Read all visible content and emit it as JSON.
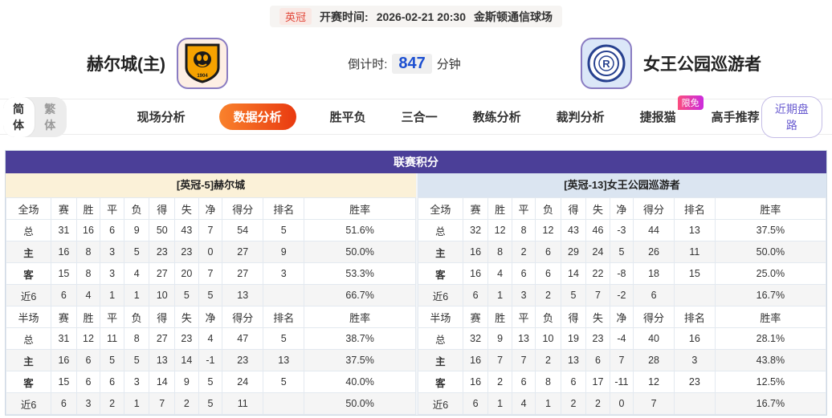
{
  "header": {
    "league_badge": "英冠",
    "kickoff_label": "开赛时间:",
    "kickoff_time": "2026-02-21 20:30",
    "venue": "金斯顿通信球场",
    "home_team": "赫尔城(主)",
    "away_team": "女王公园巡游者",
    "home_logo_year": "1904",
    "countdown_label": "倒计时:",
    "countdown_value": "847",
    "countdown_unit": "分钟"
  },
  "nav": {
    "lang": {
      "simplified": "简体",
      "traditional": "繁体"
    },
    "tabs": [
      {
        "label": "现场分析",
        "active": false
      },
      {
        "label": "数据分析",
        "active": true
      },
      {
        "label": "胜平负",
        "active": false
      },
      {
        "label": "三合一",
        "active": false
      },
      {
        "label": "教练分析",
        "active": false
      },
      {
        "label": "裁判分析",
        "active": false
      },
      {
        "label": "捷报猫",
        "active": false,
        "badge": "限免"
      },
      {
        "label": "高手推荐",
        "active": false
      }
    ],
    "recent_button": "近期盘路"
  },
  "colors": {
    "title_purple": "#4b3f98",
    "home_header_bg": "#fbf1d8",
    "away_header_bg": "#dbe5f1",
    "active_tab": "#e93a10",
    "home_row_label": "#d9342b",
    "away_row_label": "#2d52c8",
    "countdown_blue": "#1c4fd1"
  },
  "standings": {
    "title": "联赛积分",
    "sides": [
      {
        "team_header": "[英冠-5]赫尔城",
        "style": "cream",
        "sections": [
          {
            "columns": [
              "全场",
              "赛",
              "胜",
              "平",
              "负",
              "得",
              "失",
              "净",
              "得分",
              "排名",
              "胜率"
            ],
            "rows": [
              {
                "label": "总",
                "type": "total",
                "values": [
                  "31",
                  "16",
                  "6",
                  "9",
                  "50",
                  "43",
                  "7",
                  "54",
                  "5",
                  "51.6%"
                ]
              },
              {
                "label": "主",
                "type": "home",
                "values": [
                  "16",
                  "8",
                  "3",
                  "5",
                  "23",
                  "23",
                  "0",
                  "27",
                  "9",
                  "50.0%"
                ]
              },
              {
                "label": "客",
                "type": "away",
                "values": [
                  "15",
                  "8",
                  "3",
                  "4",
                  "27",
                  "20",
                  "7",
                  "27",
                  "3",
                  "53.3%"
                ]
              },
              {
                "label": "近6",
                "type": "recent",
                "values": [
                  "6",
                  "4",
                  "1",
                  "1",
                  "10",
                  "5",
                  "5",
                  "13",
                  "",
                  "66.7%"
                ]
              }
            ]
          },
          {
            "columns": [
              "半场",
              "赛",
              "胜",
              "平",
              "负",
              "得",
              "失",
              "净",
              "得分",
              "排名",
              "胜率"
            ],
            "rows": [
              {
                "label": "总",
                "type": "total",
                "values": [
                  "31",
                  "12",
                  "11",
                  "8",
                  "27",
                  "23",
                  "4",
                  "47",
                  "5",
                  "38.7%"
                ]
              },
              {
                "label": "主",
                "type": "home",
                "values": [
                  "16",
                  "6",
                  "5",
                  "5",
                  "13",
                  "14",
                  "-1",
                  "23",
                  "13",
                  "37.5%"
                ]
              },
              {
                "label": "客",
                "type": "away",
                "values": [
                  "15",
                  "6",
                  "6",
                  "3",
                  "14",
                  "9",
                  "5",
                  "24",
                  "5",
                  "40.0%"
                ]
              },
              {
                "label": "近6",
                "type": "recent",
                "values": [
                  "6",
                  "3",
                  "2",
                  "1",
                  "7",
                  "2",
                  "5",
                  "11",
                  "",
                  "50.0%"
                ]
              }
            ]
          }
        ]
      },
      {
        "team_header": "[英冠-13]女王公园巡游者",
        "style": "blue",
        "sections": [
          {
            "columns": [
              "全场",
              "赛",
              "胜",
              "平",
              "负",
              "得",
              "失",
              "净",
              "得分",
              "排名",
              "胜率"
            ],
            "rows": [
              {
                "label": "总",
                "type": "total",
                "values": [
                  "32",
                  "12",
                  "8",
                  "12",
                  "43",
                  "46",
                  "-3",
                  "44",
                  "13",
                  "37.5%"
                ]
              },
              {
                "label": "主",
                "type": "home",
                "values": [
                  "16",
                  "8",
                  "2",
                  "6",
                  "29",
                  "24",
                  "5",
                  "26",
                  "11",
                  "50.0%"
                ]
              },
              {
                "label": "客",
                "type": "away",
                "values": [
                  "16",
                  "4",
                  "6",
                  "6",
                  "14",
                  "22",
                  "-8",
                  "18",
                  "15",
                  "25.0%"
                ]
              },
              {
                "label": "近6",
                "type": "recent",
                "values": [
                  "6",
                  "1",
                  "3",
                  "2",
                  "5",
                  "7",
                  "-2",
                  "6",
                  "",
                  "16.7%"
                ]
              }
            ]
          },
          {
            "columns": [
              "半场",
              "赛",
              "胜",
              "平",
              "负",
              "得",
              "失",
              "净",
              "得分",
              "排名",
              "胜率"
            ],
            "rows": [
              {
                "label": "总",
                "type": "total",
                "values": [
                  "32",
                  "9",
                  "13",
                  "10",
                  "19",
                  "23",
                  "-4",
                  "40",
                  "16",
                  "28.1%"
                ]
              },
              {
                "label": "主",
                "type": "home",
                "values": [
                  "16",
                  "7",
                  "7",
                  "2",
                  "13",
                  "6",
                  "7",
                  "28",
                  "3",
                  "43.8%"
                ]
              },
              {
                "label": "客",
                "type": "away",
                "values": [
                  "16",
                  "2",
                  "6",
                  "8",
                  "6",
                  "17",
                  "-11",
                  "12",
                  "23",
                  "12.5%"
                ]
              },
              {
                "label": "近6",
                "type": "recent",
                "values": [
                  "6",
                  "1",
                  "4",
                  "1",
                  "2",
                  "2",
                  "0",
                  "7",
                  "",
                  "16.7%"
                ]
              }
            ]
          }
        ]
      }
    ]
  }
}
